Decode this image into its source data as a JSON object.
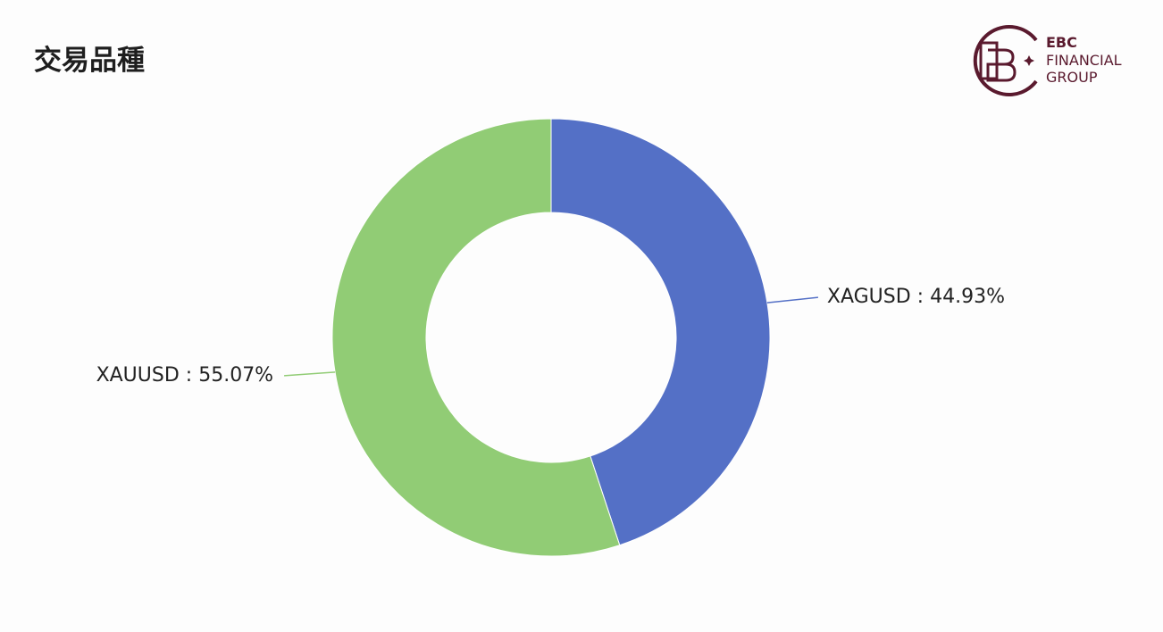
{
  "header": {
    "title": "交易品種",
    "logo_lines": [
      "EBC",
      "FINANCIAL",
      "GROUP"
    ]
  },
  "chart_data": {
    "type": "donut",
    "categories": [
      "XAGUSD",
      "XAUUSD"
    ],
    "values": [
      44.93,
      55.07
    ],
    "value_labels": [
      "44.93%",
      "55.07%"
    ],
    "label_separator": " : ",
    "colors": [
      "#5470c6",
      "#91cc75"
    ]
  }
}
